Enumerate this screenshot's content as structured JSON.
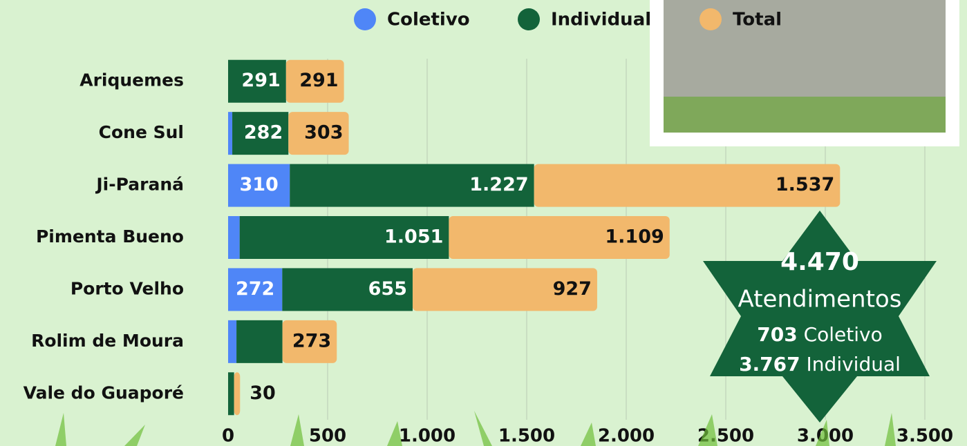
{
  "chart_data": {
    "type": "stacked-barh",
    "categories": [
      "Ariquemes",
      "Cone Sul",
      "Ji-Paraná",
      "Pimenta Bueno",
      "Porto Velho",
      "Rolim de Moura",
      "Vale do Guaporé"
    ],
    "series": [
      {
        "name": "Coletivo",
        "color": "#4f86f7",
        "values": [
          0,
          21,
          310,
          58,
          272,
          42,
          0
        ],
        "value_labels": [
          null,
          null,
          "310",
          null,
          "272",
          null,
          null
        ]
      },
      {
        "name": "Individual",
        "color": "#13633a",
        "values": [
          291,
          282,
          1227,
          1051,
          655,
          231,
          30
        ],
        "value_labels": [
          "291",
          "282",
          "1.227",
          "1.051",
          "655",
          null,
          null
        ]
      },
      {
        "name": "Total",
        "color": "#f2b86c",
        "values": [
          291,
          303,
          1537,
          1109,
          927,
          273,
          30
        ],
        "value_labels": [
          "291",
          "303",
          "1.537",
          "1.109",
          "927",
          "273",
          "30"
        ]
      }
    ],
    "xlim": [
      0,
      3500
    ],
    "xticks": [
      0,
      500,
      {
        "value": 1000,
        "label": "1.000"
      },
      {
        "value": 1500,
        "label": "1.500"
      },
      {
        "value": 2000,
        "label": "2.000"
      },
      {
        "value": 2500,
        "label": "2.500"
      },
      {
        "value": 3000,
        "label": "3.000"
      },
      {
        "value": 3500,
        "label": "3.500"
      }
    ],
    "grid": true,
    "legend": "top",
    "badge": {
      "total": "4.470",
      "label": "Atendimentos",
      "coletivo_value": "703",
      "coletivo_label": "Coletivo",
      "individual_value": "3.767",
      "individual_label": "Individual"
    }
  }
}
